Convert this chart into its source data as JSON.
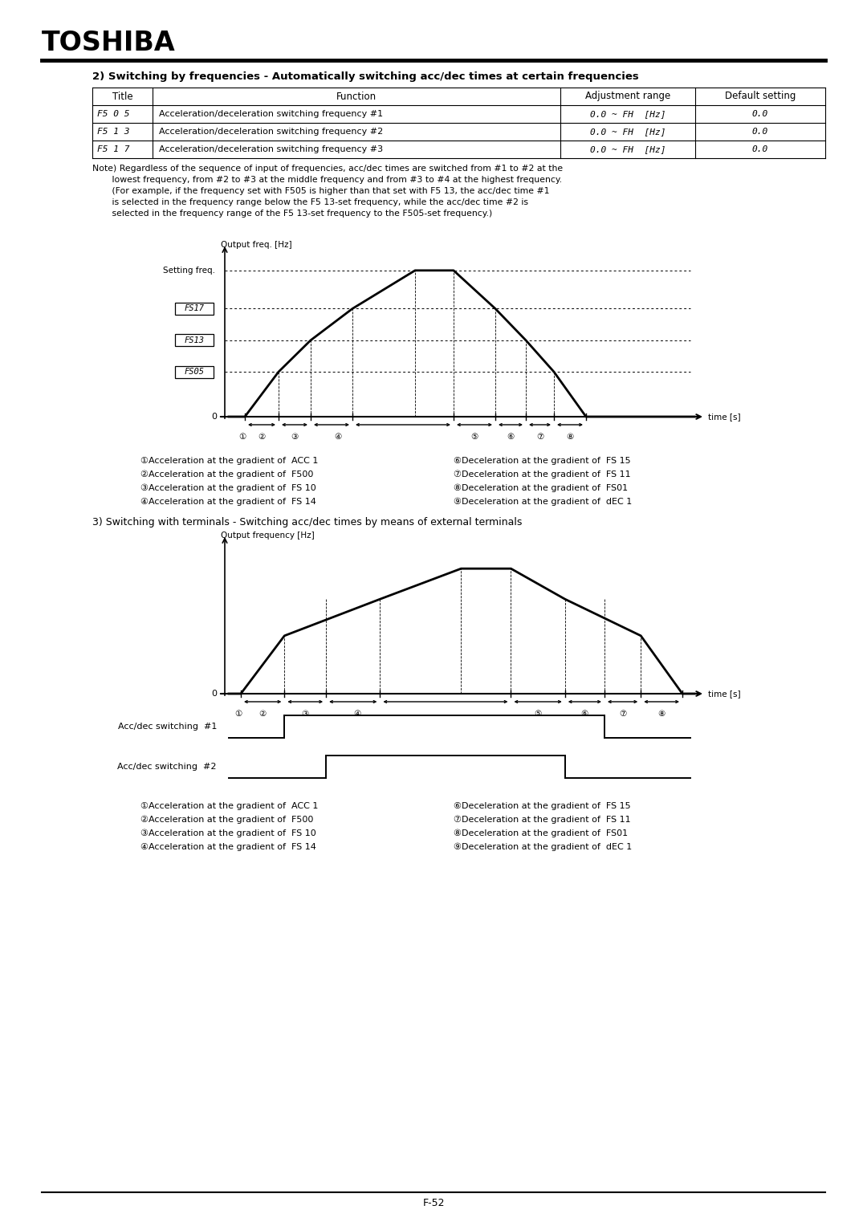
{
  "title": "TOSHIBA",
  "section2_title": "2) Switching by frequencies - Automatically switching acc/dec times at certain frequencies",
  "section3_title": "3) Switching with terminals - Switching acc/dec times by means of external terminals",
  "table_headers": [
    "Title",
    "Function",
    "Adjustment range",
    "Default setting"
  ],
  "table_row1_title": "F5 0 5",
  "table_row1_func": "Acceleration/deceleration switching frequency #1",
  "table_row1_range": "0.0 ~ FH  [Hz]",
  "table_row1_def": "0.0",
  "table_row2_title": "F5 1 3",
  "table_row2_func": "Acceleration/deceleration switching frequency #2",
  "table_row2_range": "0.0 ~ FH  [Hz]",
  "table_row2_def": "0.0",
  "table_row3_title": "F5 1 7",
  "table_row3_func": "Acceleration/deceleration switching frequency #3",
  "table_row3_range": "0.0 ~ FH  [Hz]",
  "table_row3_def": "0.0",
  "note_line1": "Note) Regardless of the sequence of input of frequencies, acc/dec times are switched from #1 to #2 at the",
  "note_line2": "       lowest frequency, from #2 to #3 at the middle frequency and from #3 to #4 at the highest frequency.",
  "note_line3": "       (For example, if the frequency set with F505 is higher than that set with F5 13, the acc/dec time #1",
  "note_line4": "       is selected in the frequency range below the F5 13-set frequency, while the acc/dec time #2 is",
  "note_line5": "       selected in the frequency range of the F5 13-set frequency to the F505-set frequency.)",
  "g1_ylabel": "Output freq. [Hz]",
  "g1_setting": "Setting freq.",
  "g1_time": "time [s]",
  "g2_ylabel": "Output frequency [Hz]",
  "g2_time": "time [s]",
  "sw1_label": "Acc/dec switching  #1",
  "sw2_label": "Acc/dec switching  #2",
  "leg_l1": "①Acceleration at the gradient of  ACC 1",
  "leg_l2": "②Acceleration at the gradient of  F500",
  "leg_l3": "③Acceleration at the gradient of  FS 10",
  "leg_l4": "④Acceleration at the gradient of  FS 14",
  "leg_r1": "⑥Deceleration at the gradient of  FS 15",
  "leg_r2": "⑦Deceleration at the gradient of  FS 11",
  "leg_r3": "⑧Deceleration at the gradient of  FS01",
  "leg_r4": "⑨Deceleration at the gradient of  dEC 1",
  "page": "F-52",
  "bg": "#ffffff"
}
